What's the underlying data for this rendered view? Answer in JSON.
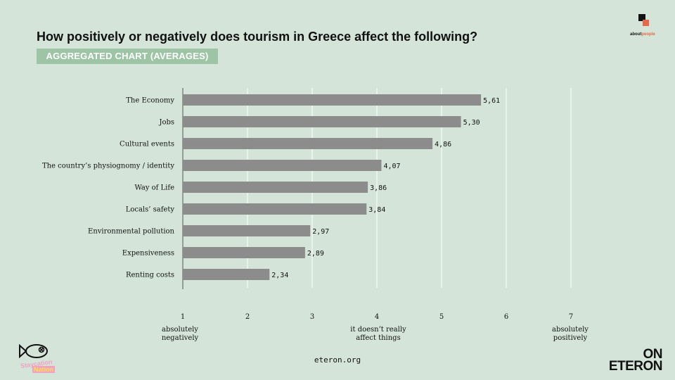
{
  "header": {
    "title": "How positively or negatively does tourism in Greece affect the following?",
    "subtitle": "AGGREGATED CHART (AVERAGES)"
  },
  "logos": {
    "about_part1": "about",
    "about_part2": "people",
    "on_line1": "ON",
    "on_line2": "ETERON",
    "stay_line1": "Staycation",
    "stay_line2": "Nation"
  },
  "footer": {
    "url": "eteron.org"
  },
  "scale_anchors": {
    "left": [
      "absolutely",
      "negatively"
    ],
    "middle": [
      "it doesn’t really",
      "affect things"
    ],
    "right": [
      "absolutely",
      "positively"
    ]
  },
  "chart_data": {
    "type": "bar",
    "orientation": "horizontal",
    "title": "How positively or negatively does tourism in Greece affect the following?",
    "subtitle": "AGGREGATED CHART (AVERAGES)",
    "categories": [
      "The Economy",
      "Jobs",
      "Cultural events",
      "The country’s physiognomy / identity",
      "Way of Life",
      "Locals’ safety",
      "Environmental pollution",
      "Expensiveness",
      "Renting costs"
    ],
    "values": [
      5.61,
      5.3,
      4.86,
      4.07,
      3.86,
      3.84,
      2.97,
      2.89,
      2.34
    ],
    "value_labels": [
      "5,61",
      "5,30",
      "4,86",
      "4,07",
      "3,86",
      "3,84",
      "2,97",
      "2,89",
      "2,34"
    ],
    "xlim": [
      1,
      7
    ],
    "xticks": [
      1,
      2,
      3,
      4,
      5,
      6,
      7
    ],
    "grid": true,
    "bar_color": "#8c8c8c",
    "grid_color": "#ffffff"
  }
}
